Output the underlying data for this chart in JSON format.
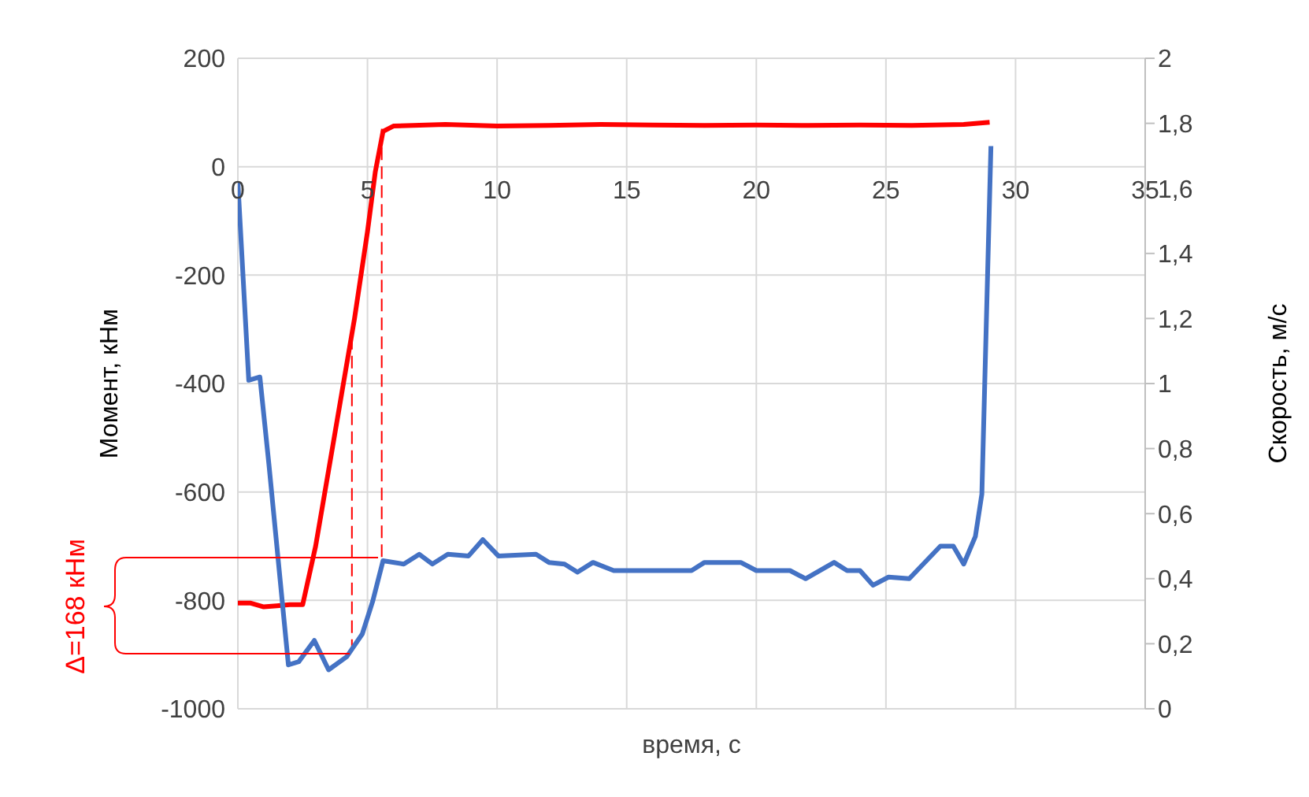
{
  "chart_data": {
    "type": "line",
    "xlabel": "время, с",
    "ylabel": "Момент, кНм",
    "y2label": "Скорость, м/с",
    "xlim": [
      0,
      35
    ],
    "xticks": [
      0,
      5,
      10,
      15,
      20,
      25,
      30,
      35
    ],
    "ylim": [
      -1000,
      200
    ],
    "yticks": [
      -1000,
      -800,
      -600,
      -400,
      -200,
      0,
      200
    ],
    "y2lim": [
      0,
      2
    ],
    "y2ticks": [
      0,
      {
        "value": 0.2,
        "label": "0,2"
      },
      {
        "value": 0.4,
        "label": "0,4"
      },
      {
        "value": 0.6,
        "label": "0,6"
      },
      {
        "value": 0.8,
        "label": "0,8"
      },
      1,
      {
        "value": 1.2,
        "label": "1,2"
      },
      {
        "value": 1.4,
        "label": "1,4"
      },
      {
        "value": 1.6,
        "label": "1,6"
      },
      {
        "value": 1.8,
        "label": "1,8"
      },
      2
    ],
    "grid": true,
    "marker": "none",
    "line_style": "solid",
    "annotations": [
      "Δ=168 кНм"
    ],
    "series": [
      {
        "color": "#ff0000",
        "line_style": "dashed",
        "x": [
          4.4,
          4.4
        ],
        "values": [
          -895,
          -323
        ]
      },
      {
        "color": "#ff0000",
        "line_style": "dashed",
        "x": [
          5.55,
          5.55
        ],
        "values": [
          -720,
          70
        ]
      },
      {
        "color": "#ff0000",
        "x": [
          0,
          0.5,
          1,
          1.5,
          2,
          2.5,
          3,
          3.5,
          4,
          4.5,
          5,
          5.3,
          5.6,
          6,
          8,
          10,
          12,
          14,
          16,
          18,
          20,
          22,
          24,
          26,
          28,
          29
        ],
        "values": [
          -805,
          -805,
          -812,
          -810,
          -808,
          -808,
          -700,
          -560,
          -420,
          -280,
          -120,
          -10,
          65,
          75,
          78,
          75,
          76,
          78,
          77,
          76,
          77,
          76,
          77,
          76,
          78,
          82
        ]
      },
      {
        "color": "#4472c4",
        "axis": "y2",
        "x": [
          0,
          0.42,
          0.85,
          1.2,
          1.95,
          2.35,
          2.95,
          3.5,
          4.2,
          4.8,
          5.2,
          5.6,
          6.4,
          7,
          7.5,
          8.1,
          8.9,
          9.45,
          10.05,
          11.5,
          12,
          12.6,
          13.1,
          13.7,
          14.5,
          17.5,
          18,
          19.4,
          20,
          21.3,
          21.9,
          23,
          23.5,
          24,
          24.5,
          25.1,
          25.9,
          27.1,
          27.6,
          28,
          28.45,
          28.7,
          29.05
        ],
        "values": [
          1.62,
          1.01,
          1.02,
          0.75,
          0.135,
          0.145,
          0.21,
          0.12,
          0.16,
          0.23,
          0.33,
          0.455,
          0.445,
          0.475,
          0.445,
          0.475,
          0.47,
          0.52,
          0.47,
          0.475,
          0.45,
          0.445,
          0.42,
          0.45,
          0.425,
          0.425,
          0.45,
          0.45,
          0.425,
          0.425,
          0.4,
          0.45,
          0.425,
          0.425,
          0.38,
          0.405,
          0.4,
          0.5,
          0.5,
          0.445,
          0.53,
          0.66,
          1.73
        ]
      }
    ]
  }
}
